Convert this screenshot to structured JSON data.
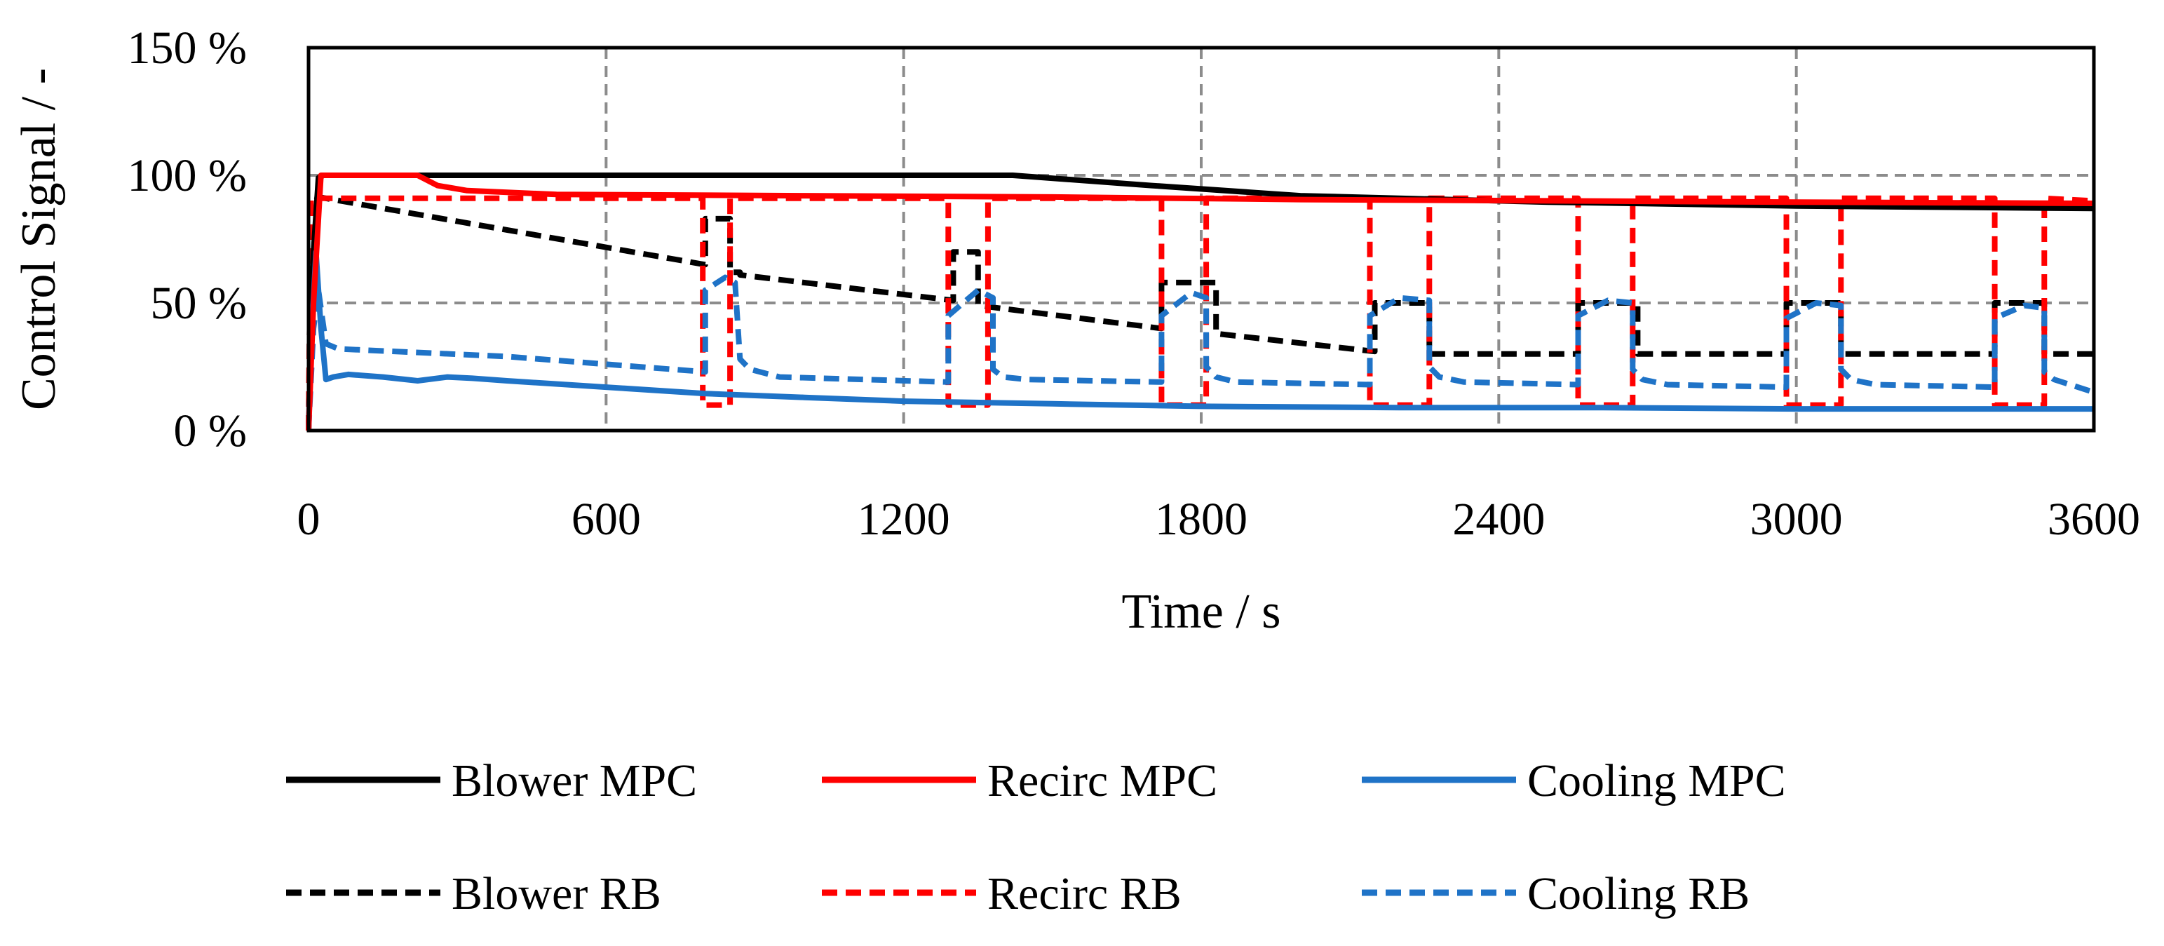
{
  "chart_data": {
    "type": "line",
    "title": "",
    "xlabel": "Time / s",
    "ylabel": "Control Signal / -",
    "xlim": [
      0,
      3600
    ],
    "ylim": [
      0,
      150
    ],
    "x_ticks": [
      0,
      600,
      1200,
      1800,
      2400,
      3000,
      3600
    ],
    "x_tick_labels": [
      "0",
      "600",
      "1200",
      "1800",
      "2400",
      "3000",
      "3600"
    ],
    "y_ticks": [
      0,
      50,
      100,
      150
    ],
    "y_tick_labels": [
      "0 %",
      "50 %",
      "100 %",
      "150 %"
    ],
    "grid": true,
    "legend_position": "bottom",
    "series": [
      {
        "name": "Blower MPC",
        "color": "#000000",
        "style": "solid",
        "x": [
          0,
          10,
          20,
          30,
          1420,
          1700,
          2000,
          2500,
          3000,
          3600
        ],
        "y": [
          0,
          70,
          99,
          100,
          100,
          96,
          92,
          89.5,
          88,
          87
        ]
      },
      {
        "name": "Recirc MPC",
        "color": "#ff0000",
        "style": "solid",
        "x": [
          0,
          10,
          25,
          220,
          260,
          320,
          500,
          1000,
          1500,
          2000,
          2500,
          3000,
          3600
        ],
        "y": [
          0,
          50,
          100,
          100,
          96,
          94,
          92.5,
          92,
          91.5,
          90.5,
          90,
          89.5,
          89
        ]
      },
      {
        "name": "Cooling MPC",
        "color": "#1f73c7",
        "style": "solid",
        "x": [
          0,
          8,
          15,
          25,
          35,
          50,
          80,
          150,
          220,
          280,
          330,
          400,
          600,
          800,
          1000,
          1200,
          1500,
          1800,
          2200,
          2600,
          3000,
          3600
        ],
        "y": [
          0,
          45,
          70,
          40,
          20,
          21,
          22,
          21,
          19.5,
          21,
          20.5,
          19.5,
          17,
          14.5,
          13,
          11.5,
          10.5,
          9.5,
          9,
          9,
          8.5,
          8.5
        ]
      },
      {
        "name": "Blower RB",
        "color": "#000000",
        "style": "dashed",
        "x": [
          0,
          5,
          800,
          800,
          850,
          850,
          870,
          870,
          1300,
          1300,
          1350,
          1350,
          1720,
          1720,
          1830,
          1830,
          2150,
          2150,
          2260,
          2260,
          2560,
          2560,
          2680,
          2680,
          2980,
          2980,
          3090,
          3090,
          3400,
          3400,
          3500,
          3500,
          3600
        ],
        "y": [
          0,
          92,
          65,
          83,
          83,
          62,
          62,
          61,
          51,
          70,
          70,
          49,
          40,
          58,
          58,
          38,
          31,
          50,
          50,
          30,
          30,
          50,
          50,
          30,
          30,
          50,
          50,
          30,
          30,
          50,
          50,
          30,
          30
        ]
      },
      {
        "name": "Recirc RB",
        "color": "#ff0000",
        "style": "dashed",
        "x": [
          0,
          5,
          795,
          795,
          850,
          850,
          1290,
          1290,
          1370,
          1370,
          1720,
          1720,
          1810,
          1810,
          2140,
          2140,
          2260,
          2260,
          2560,
          2560,
          2670,
          2670,
          2980,
          2980,
          3090,
          3090,
          3400,
          3400,
          3500,
          3500,
          3600
        ],
        "y": [
          0,
          91,
          91,
          10,
          10,
          91,
          91,
          10,
          10,
          91,
          91,
          10,
          10,
          91,
          91,
          10,
          10,
          91,
          91,
          10,
          10,
          91,
          91,
          10,
          10,
          91,
          91,
          10,
          10,
          91,
          90
        ]
      },
      {
        "name": "Cooling RB",
        "color": "#1f73c7",
        "style": "dashed",
        "x": [
          0,
          10,
          20,
          35,
          60,
          400,
          800,
          800,
          840,
          860,
          870,
          890,
          950,
          1290,
          1290,
          1350,
          1380,
          1380,
          1400,
          1450,
          1720,
          1720,
          1780,
          1810,
          1810,
          1830,
          1870,
          2140,
          2140,
          2200,
          2260,
          2260,
          2280,
          2330,
          2560,
          2560,
          2620,
          2670,
          2670,
          2690,
          2740,
          2980,
          2980,
          3040,
          3090,
          3090,
          3110,
          3160,
          3400,
          3400,
          3460,
          3500,
          3500,
          3520,
          3600
        ],
        "y": [
          0,
          40,
          55,
          34,
          32,
          29,
          23,
          55,
          60,
          58,
          28,
          24,
          21,
          19,
          45,
          55,
          52,
          24,
          21,
          20,
          19,
          45,
          54,
          52,
          25,
          21,
          19,
          18,
          45,
          52,
          51,
          25,
          21,
          19,
          18,
          45,
          51,
          50,
          24,
          20,
          18,
          17,
          44,
          50,
          49,
          24,
          20,
          18,
          17,
          44,
          49,
          48,
          23,
          20,
          15
        ]
      }
    ]
  },
  "legend": {
    "items": [
      {
        "label": "Blower MPC",
        "color": "#000000",
        "style": "solid"
      },
      {
        "label": "Recirc MPC",
        "color": "#ff0000",
        "style": "solid"
      },
      {
        "label": "Cooling MPC",
        "color": "#1f73c7",
        "style": "solid"
      },
      {
        "label": "Blower RB",
        "color": "#000000",
        "style": "dashed"
      },
      {
        "label": "Recirc RB",
        "color": "#ff0000",
        "style": "dashed"
      },
      {
        "label": "Cooling RB",
        "color": "#1f73c7",
        "style": "dashed"
      }
    ]
  }
}
